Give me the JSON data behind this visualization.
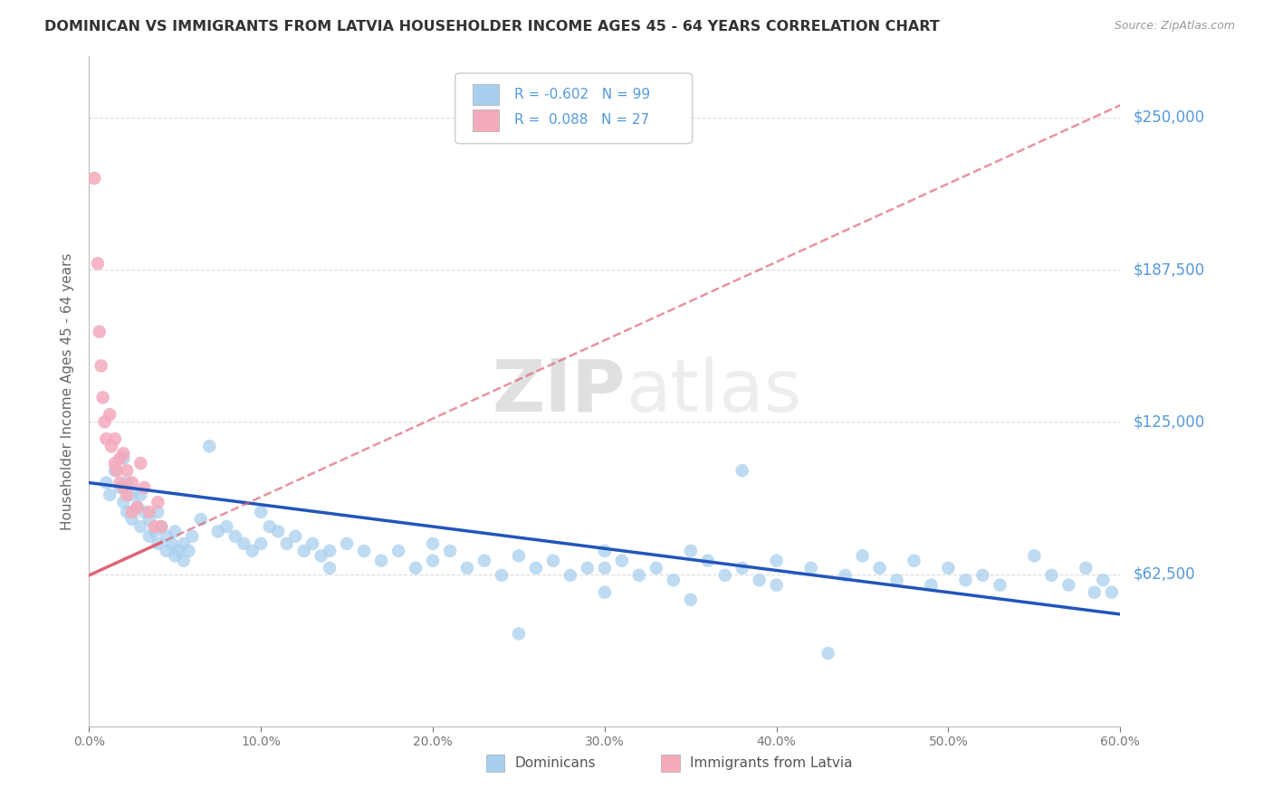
{
  "title": "DOMINICAN VS IMMIGRANTS FROM LATVIA HOUSEHOLDER INCOME AGES 45 - 64 YEARS CORRELATION CHART",
  "source": "Source: ZipAtlas.com",
  "ylabel": "Householder Income Ages 45 - 64 years",
  "xlim": [
    0.0,
    0.6
  ],
  "ylim": [
    0,
    275000
  ],
  "yticks": [
    62500,
    125000,
    187500,
    250000
  ],
  "ytick_labels": [
    "$62,500",
    "$125,000",
    "$187,500",
    "$250,000"
  ],
  "xticks": [
    0.0,
    0.1,
    0.2,
    0.3,
    0.4,
    0.5,
    0.6
  ],
  "xtick_labels": [
    "0.0%",
    "10.0%",
    "20.0%",
    "30.0%",
    "40.0%",
    "50.0%",
    "60.0%"
  ],
  "blue_color": "#A8CFEE",
  "pink_color": "#F4AABB",
  "blue_line_color": "#2255BB",
  "pink_line_color": "#DD6677",
  "ytick_color": "#5599DD",
  "grid_color": "#DDDDDD",
  "watermark_zip": "ZIP",
  "watermark_atlas": "atlas",
  "dominican_x": [
    0.01,
    0.012,
    0.015,
    0.018,
    0.02,
    0.02,
    0.022,
    0.022,
    0.025,
    0.025,
    0.028,
    0.03,
    0.03,
    0.032,
    0.035,
    0.035,
    0.038,
    0.04,
    0.04,
    0.042,
    0.045,
    0.045,
    0.048,
    0.05,
    0.05,
    0.052,
    0.055,
    0.055,
    0.058,
    0.06,
    0.065,
    0.07,
    0.075,
    0.08,
    0.085,
    0.09,
    0.095,
    0.1,
    0.1,
    0.105,
    0.11,
    0.115,
    0.12,
    0.125,
    0.13,
    0.135,
    0.14,
    0.14,
    0.15,
    0.16,
    0.17,
    0.18,
    0.19,
    0.2,
    0.2,
    0.21,
    0.22,
    0.23,
    0.24,
    0.25,
    0.26,
    0.27,
    0.28,
    0.29,
    0.3,
    0.3,
    0.31,
    0.32,
    0.33,
    0.34,
    0.35,
    0.36,
    0.37,
    0.38,
    0.39,
    0.4,
    0.4,
    0.42,
    0.44,
    0.45,
    0.46,
    0.47,
    0.48,
    0.49,
    0.5,
    0.51,
    0.52,
    0.53,
    0.55,
    0.56,
    0.57,
    0.58,
    0.585,
    0.59,
    0.595,
    0.3,
    0.35,
    0.43,
    0.25,
    0.38
  ],
  "dominican_y": [
    100000,
    95000,
    105000,
    98000,
    110000,
    92000,
    100000,
    88000,
    95000,
    85000,
    90000,
    95000,
    82000,
    88000,
    85000,
    78000,
    80000,
    88000,
    75000,
    82000,
    78000,
    72000,
    75000,
    80000,
    70000,
    72000,
    75000,
    68000,
    72000,
    78000,
    85000,
    115000,
    80000,
    82000,
    78000,
    75000,
    72000,
    88000,
    75000,
    82000,
    80000,
    75000,
    78000,
    72000,
    75000,
    70000,
    72000,
    65000,
    75000,
    72000,
    68000,
    72000,
    65000,
    75000,
    68000,
    72000,
    65000,
    68000,
    62000,
    70000,
    65000,
    68000,
    62000,
    65000,
    72000,
    65000,
    68000,
    62000,
    65000,
    60000,
    72000,
    68000,
    62000,
    65000,
    60000,
    68000,
    58000,
    65000,
    62000,
    70000,
    65000,
    60000,
    68000,
    58000,
    65000,
    60000,
    62000,
    58000,
    70000,
    62000,
    58000,
    65000,
    55000,
    60000,
    55000,
    55000,
    52000,
    30000,
    38000,
    105000
  ],
  "latvia_x": [
    0.003,
    0.005,
    0.006,
    0.007,
    0.008,
    0.009,
    0.01,
    0.012,
    0.013,
    0.015,
    0.015,
    0.016,
    0.018,
    0.018,
    0.02,
    0.02,
    0.022,
    0.022,
    0.025,
    0.025,
    0.028,
    0.03,
    0.032,
    0.035,
    0.038,
    0.04,
    0.042
  ],
  "latvia_y": [
    225000,
    190000,
    162000,
    148000,
    135000,
    125000,
    118000,
    128000,
    115000,
    108000,
    118000,
    105000,
    100000,
    110000,
    112000,
    98000,
    105000,
    95000,
    100000,
    88000,
    90000,
    108000,
    98000,
    88000,
    82000,
    92000,
    82000
  ],
  "blue_trend_x0": 0.0,
  "blue_trend_y0": 100000,
  "blue_trend_x1": 0.6,
  "blue_trend_y1": 46000,
  "pink_trend_x0": 0.0,
  "pink_trend_y0": 62000,
  "pink_trend_x1": 0.6,
  "pink_trend_y1": 255000
}
